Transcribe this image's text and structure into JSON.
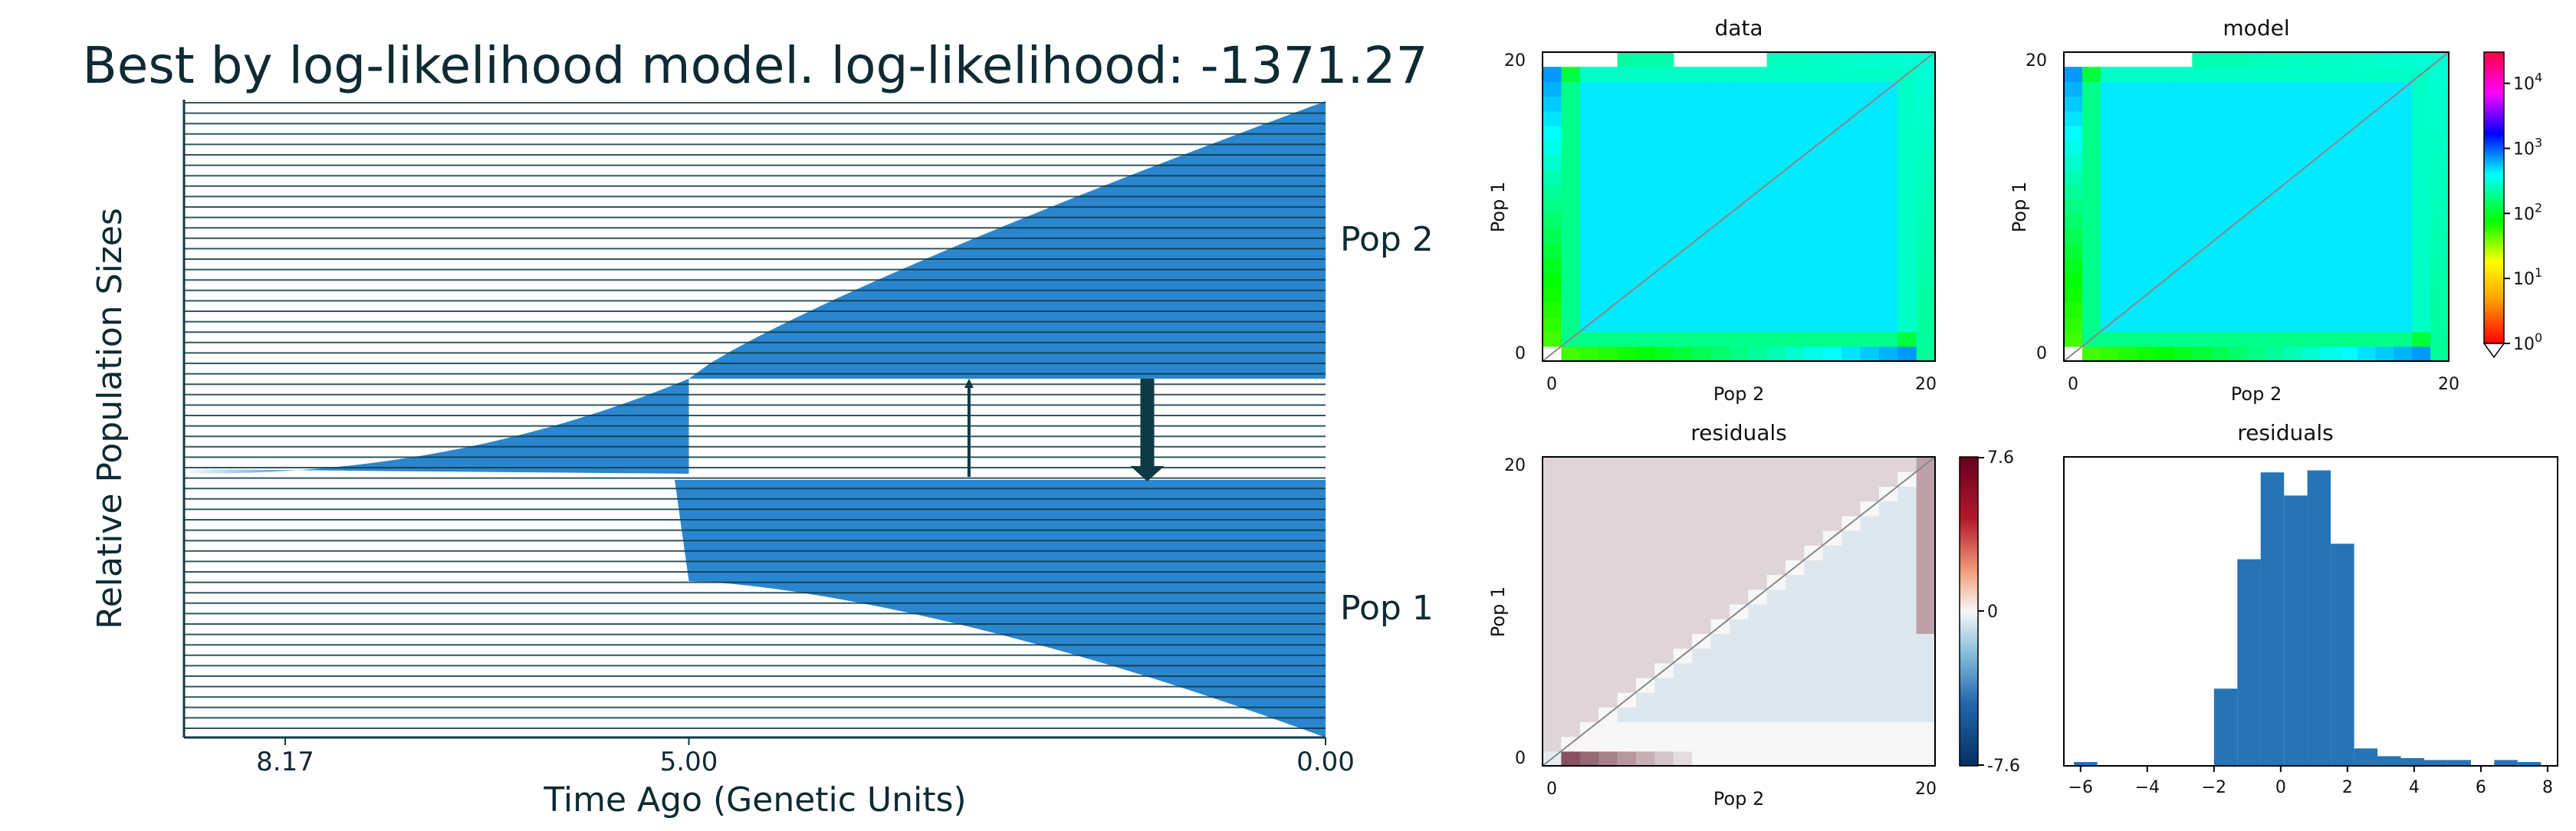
{
  "chart_data": [
    {
      "type": "demographic-model",
      "title": "Best by log-likelihood model. log-likelihood: -1371.27",
      "xlabel": "Time Ago (Genetic Units)",
      "ylabel": "Relative Population Sizes",
      "x_ticks": [
        8.17,
        5.0,
        0.0
      ],
      "x_tick_labels": [
        "8.17",
        "5.00",
        "0.00"
      ],
      "split_time": 5.0,
      "populations": [
        {
          "name": "Pop 2",
          "size_at_split": 0.6,
          "size_present": 5.5
        },
        {
          "name": "Pop 1",
          "size_at_split": 2.0,
          "size_present": 5.3
        }
      ],
      "ancestral_size_at_split": 1.9,
      "migration": [
        {
          "from": "Pop 1",
          "to": "Pop 2",
          "time": 2.8,
          "strength": "weak"
        },
        {
          "from": "Pop 2",
          "to": "Pop 1",
          "time": 1.4,
          "strength": "strong"
        }
      ]
    },
    {
      "type": "heatmap",
      "title": "data",
      "xlabel": "Pop 2",
      "ylabel": "Pop 1",
      "x_ticks": [
        "0",
        "20"
      ],
      "y_ticks": [
        "0",
        "20"
      ],
      "grid_size": [
        21,
        21
      ],
      "color_scale": "log"
    },
    {
      "type": "heatmap",
      "title": "model",
      "xlabel": "Pop 2",
      "ylabel": "Pop 1",
      "x_ticks": [
        "0",
        "20"
      ],
      "y_ticks": [
        "0",
        "20"
      ],
      "grid_size": [
        21,
        21
      ],
      "color_scale": "log",
      "colorbar_ticks": [
        "10^0",
        "10^1",
        "10^2",
        "10^3",
        "10^4"
      ],
      "colorbar_range": [
        1,
        30000
      ]
    },
    {
      "type": "heatmap",
      "title": "residuals",
      "xlabel": "Pop 2",
      "ylabel": "Pop 1",
      "x_ticks": [
        "0",
        "20"
      ],
      "y_ticks": [
        "0",
        "20"
      ],
      "grid_size": [
        21,
        21
      ],
      "colorbar_ticks": [
        "7.6",
        "0",
        "-7.6"
      ],
      "colorbar_range": [
        -7.6,
        7.6
      ]
    },
    {
      "type": "bar",
      "title": "residuals",
      "x_ticks": [
        -6,
        -4,
        -2,
        0,
        2,
        4,
        6,
        8
      ],
      "x_tick_labels": [
        "−6",
        "−4",
        "−2",
        "0",
        "2",
        "4",
        "6",
        "8"
      ],
      "bin_width": 0.7,
      "bins_start": [
        -6.2,
        -5.5,
        -4.8,
        -4.1,
        -3.4,
        -2.7,
        -2.0,
        -1.3,
        -0.6,
        0.1,
        0.8,
        1.5,
        2.2,
        2.9,
        3.6,
        4.3,
        5.0,
        5.7,
        6.4,
        7.1
      ],
      "values": [
        2,
        0,
        0,
        0,
        0,
        0,
        40,
        107,
        152,
        140,
        153,
        115,
        9,
        5,
        4,
        3,
        3,
        0,
        3,
        2
      ],
      "xlim": [
        -6.5,
        8.3
      ],
      "ylim": [
        0,
        160
      ]
    }
  ],
  "colors": {
    "population_fill": "#2b86d0",
    "line_color": "#0e3a44",
    "title_color": "#0e2a33",
    "histogram_bar": "#2673b5"
  }
}
